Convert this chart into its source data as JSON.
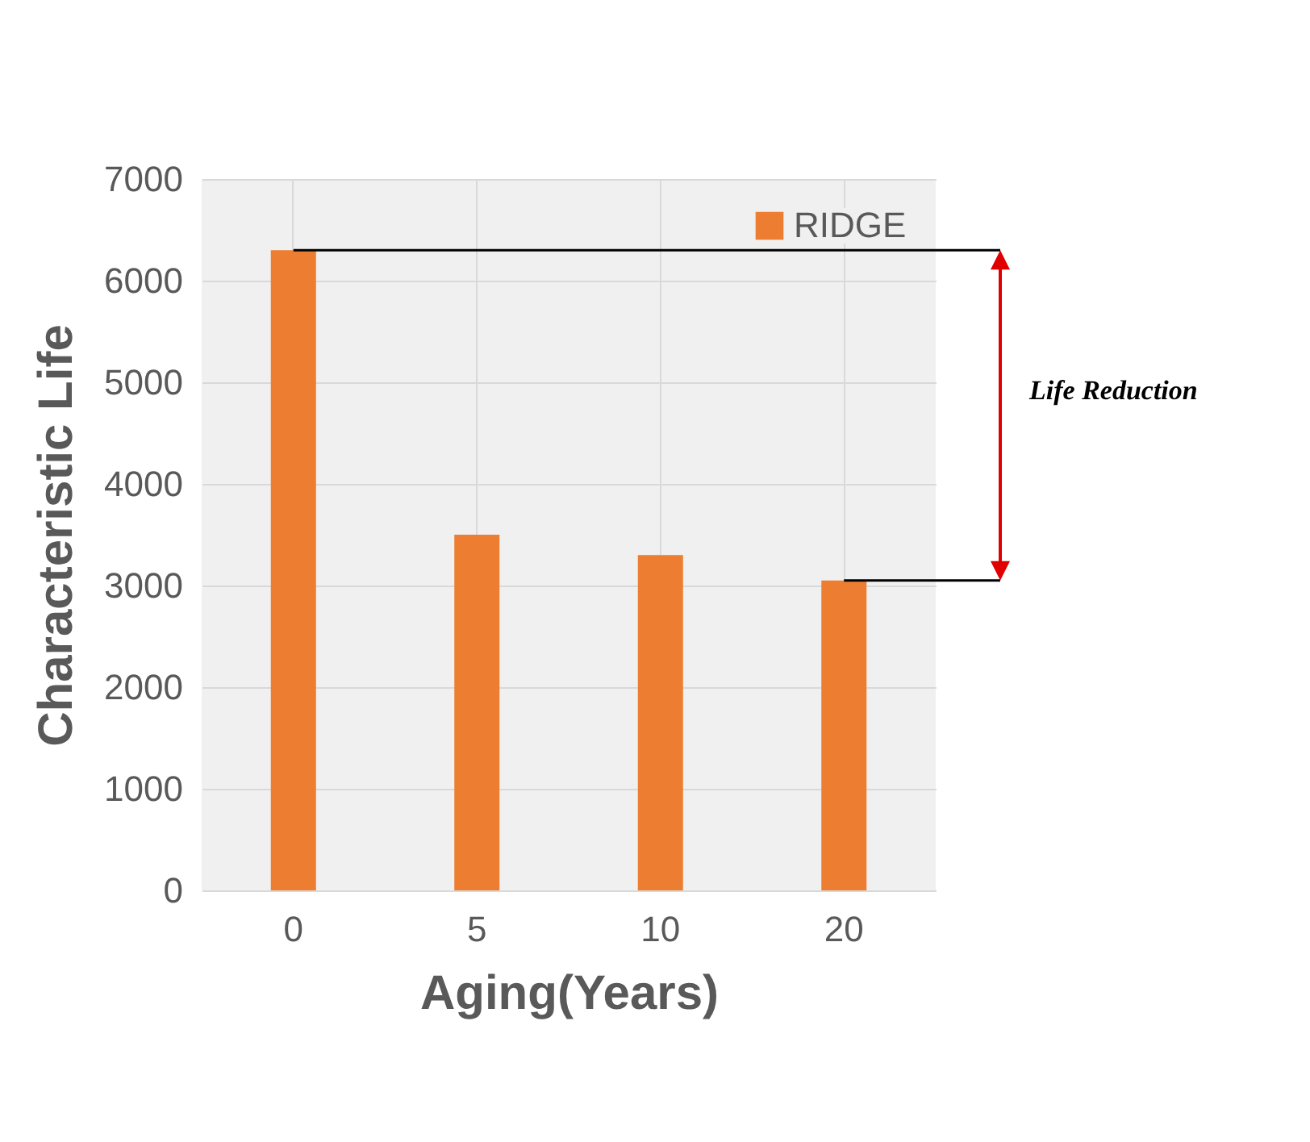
{
  "chart_data": {
    "type": "bar",
    "xlabel": "Aging(Years)",
    "ylabel": "Characteristic Life",
    "categories": [
      "0",
      "5",
      "10",
      "20"
    ],
    "series": [
      {
        "name": "RIDGE",
        "color": "#ed7d31",
        "values": [
          6300,
          3500,
          3300,
          3050
        ]
      }
    ],
    "ylim": [
      0,
      7000
    ],
    "yticks": [
      0,
      1000,
      2000,
      3000,
      4000,
      5000,
      6000,
      7000
    ],
    "grid": true,
    "legend": "top right",
    "ref_lines": [
      {
        "axis": "y",
        "value": 6300,
        "color": "#000000"
      },
      {
        "axis": "y",
        "value": 3050,
        "color": "#000000"
      }
    ],
    "annotations": [
      "Life Reduction"
    ]
  }
}
